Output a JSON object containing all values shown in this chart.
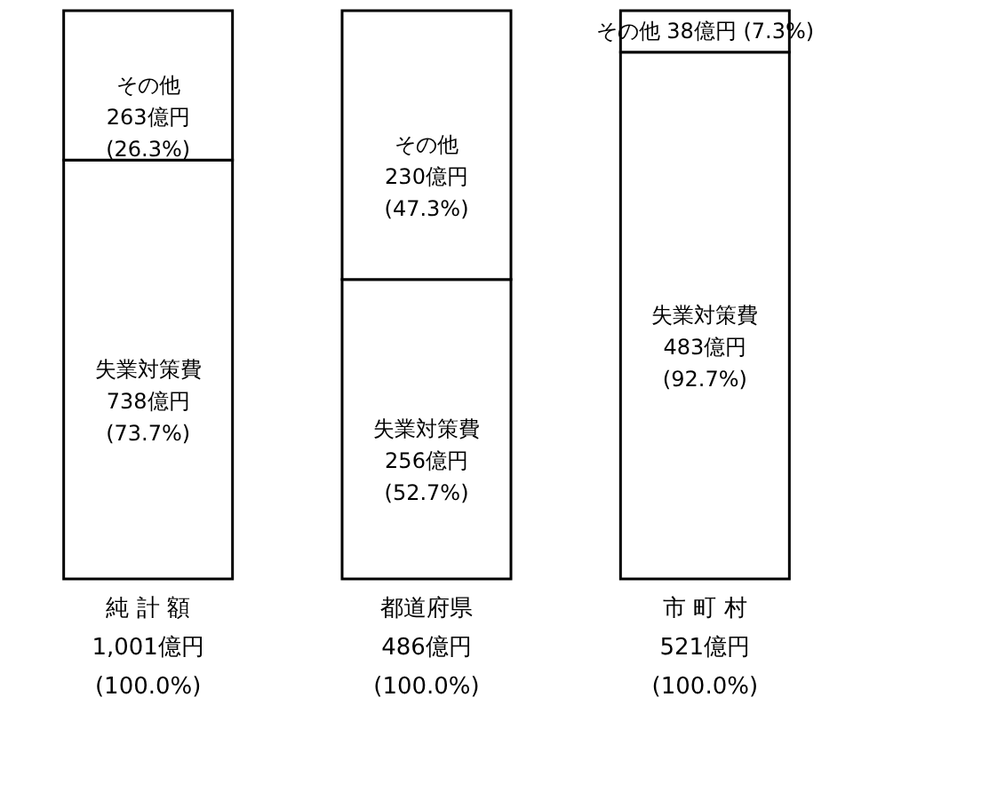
{
  "chart_data": {
    "type": "bar",
    "stacked": true,
    "categories": [
      "純 計 額\n1,001億円\n(100.0%)",
      "都道府県\n486億円\n(100.0%)",
      "市 町 村\n521億円\n(100.0%)"
    ],
    "series": [
      {
        "name": "失業対策費",
        "color": "#ffffff",
        "values": [
          73.7,
          52.7,
          92.7
        ],
        "value_labels": [
          "738億円\n(73.7%)",
          "256億円\n(52.7%)",
          "483億円\n(92.7%)"
        ]
      },
      {
        "name": "その他",
        "color": "#ffffff",
        "values": [
          26.3,
          47.3,
          7.3
        ],
        "value_labels": [
          "263億円\n(26.3%)",
          "230億円\n(47.3%)",
          "38億円 (7.3%)"
        ]
      }
    ],
    "legend": false
  }
}
